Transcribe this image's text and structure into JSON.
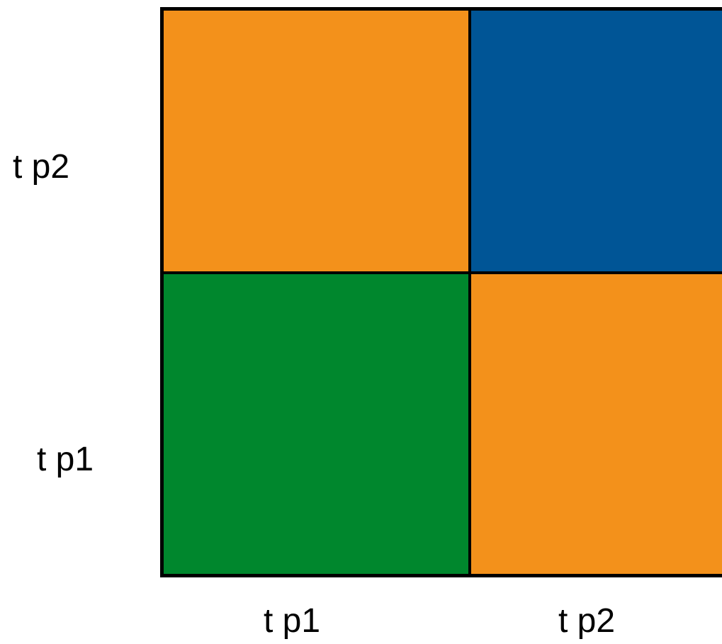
{
  "labels": {
    "y_top": "t p2",
    "y_bottom": "t p1",
    "x_left": "t p1",
    "x_right": "t p2"
  },
  "cells": [
    {
      "row": "t p2",
      "col": "t p1",
      "color": "#F3911B"
    },
    {
      "row": "t p2",
      "col": "t p2",
      "color": "#005596"
    },
    {
      "row": "t p1",
      "col": "t p1",
      "color": "#00872D"
    },
    {
      "row": "t p1",
      "col": "t p2",
      "color": "#F3911B"
    }
  ]
}
